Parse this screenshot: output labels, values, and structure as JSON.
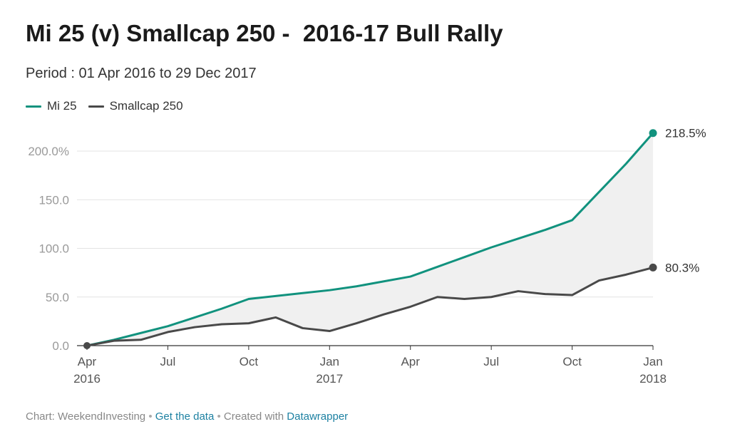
{
  "title": "Mi 25 (v) Smallcap 250 -  2016-17 Bull Rally",
  "subtitle": "Period : 01 Apr 2016 to 29 Dec 2017",
  "legend": [
    {
      "name": "Mi 25",
      "color": "#11927e"
    },
    {
      "name": "Smallcap 250",
      "color": "#494949"
    }
  ],
  "footer": {
    "source_label": "Chart: WeekendInvesting",
    "sep1": " • ",
    "get_data": "Get the data",
    "sep2": " • ",
    "created_with": "Created with ",
    "tool": "Datawrapper"
  },
  "chart_data": {
    "type": "line",
    "x": [
      0,
      1,
      2,
      3,
      4,
      5,
      6,
      7,
      8,
      9,
      10,
      11,
      12,
      13,
      14,
      15,
      16,
      17,
      18,
      19,
      20,
      21
    ],
    "x_tick_labels": [
      {
        "x": 0,
        "line1": "Apr",
        "line2": "2016"
      },
      {
        "x": 3,
        "line1": "Jul",
        "line2": ""
      },
      {
        "x": 6,
        "line1": "Oct",
        "line2": ""
      },
      {
        "x": 9,
        "line1": "Jan",
        "line2": "2017"
      },
      {
        "x": 12,
        "line1": "Apr",
        "line2": ""
      },
      {
        "x": 15,
        "line1": "Jul",
        "line2": ""
      },
      {
        "x": 18,
        "line1": "Oct",
        "line2": ""
      },
      {
        "x": 21,
        "line1": "Jan",
        "line2": "2018"
      }
    ],
    "y_ticks": [
      0,
      50,
      100,
      150,
      200
    ],
    "y_tick_labels": [
      "0.0",
      "50.0",
      "100.0",
      "150.0",
      "200.0%"
    ],
    "ylim": [
      0,
      225
    ],
    "xlim": [
      0,
      21
    ],
    "grid": "horizontal",
    "series": [
      {
        "name": "Mi 25",
        "color": "#11927e",
        "values": [
          0,
          6,
          13,
          20,
          29,
          38,
          48,
          51,
          54,
          57,
          61,
          66,
          71,
          81,
          91,
          101,
          110,
          119,
          129,
          158,
          187,
          218.5
        ],
        "end_label": "218.5%"
      },
      {
        "name": "Smallcap 250",
        "color": "#494949",
        "values": [
          0,
          5,
          6,
          14,
          19,
          22,
          23,
          29,
          18,
          15,
          23,
          32,
          40,
          50,
          48,
          50,
          56,
          53,
          52,
          67,
          73,
          80.3
        ],
        "end_label": "80.3%"
      }
    ],
    "area_fill": "#f0f0f0"
  }
}
